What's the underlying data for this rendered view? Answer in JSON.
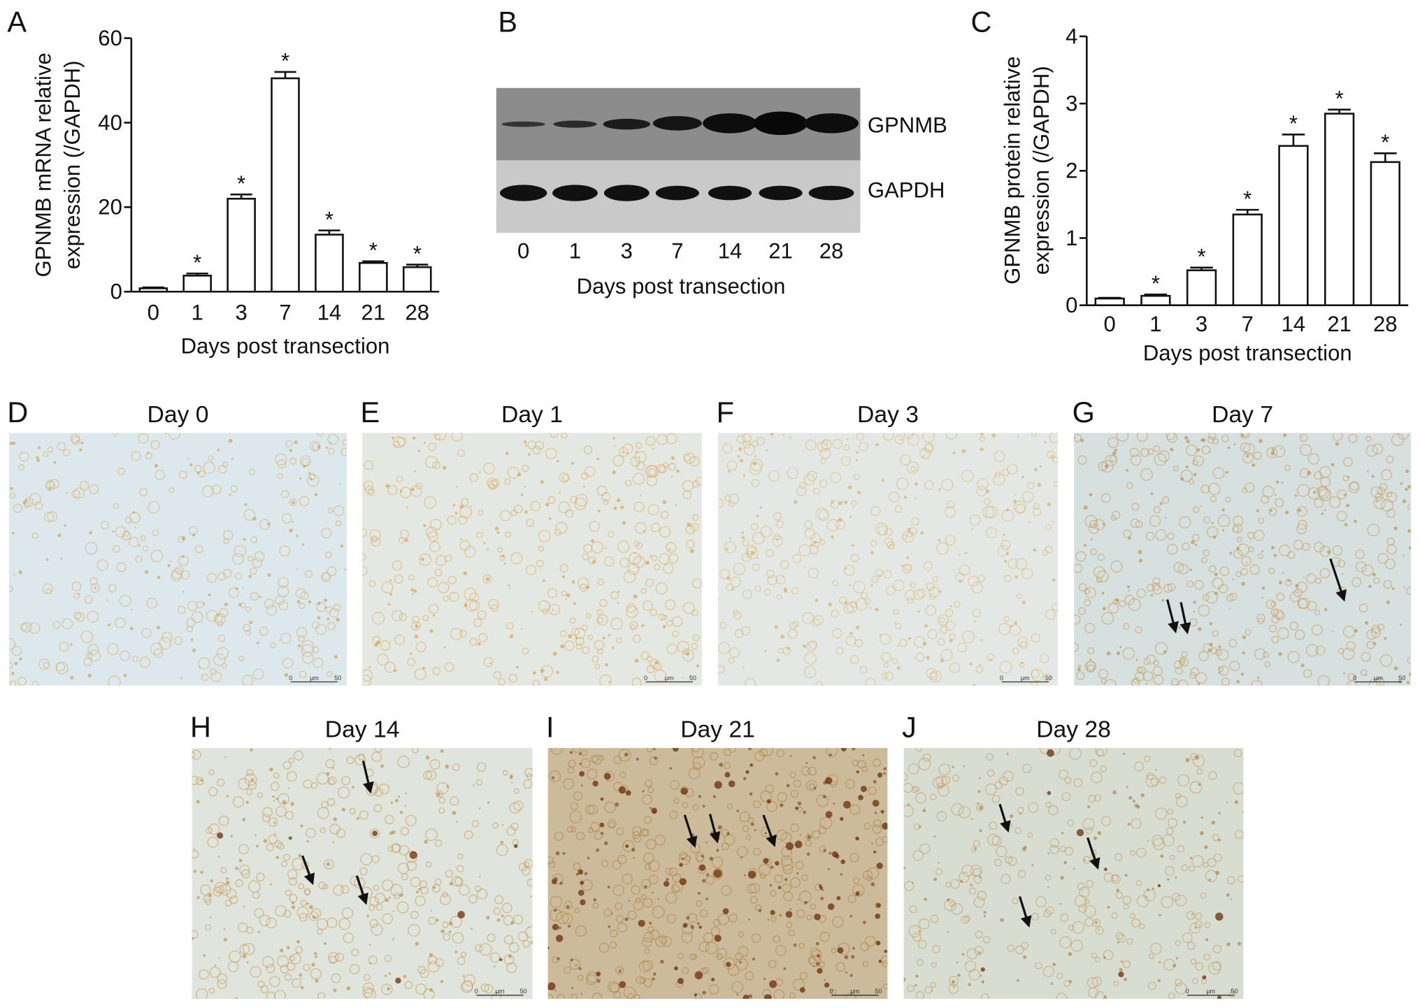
{
  "chart_data": [
    {
      "type": "bar",
      "panel": "A",
      "ylabel": [
        "GPNMB mRNA relative",
        "expression (/GAPDH)"
      ],
      "xlabel": "Days post transection",
      "categories": [
        "0",
        "1",
        "3",
        "7",
        "14",
        "21",
        "28"
      ],
      "values": [
        0.8,
        3.8,
        22,
        50.5,
        13.5,
        6.8,
        5.8
      ],
      "errors": [
        0.2,
        0.5,
        1,
        1.5,
        1,
        0.4,
        0.6
      ],
      "annotations": [
        null,
        "*",
        "*",
        "*",
        "*",
        "*",
        "*"
      ],
      "ylim": [
        0,
        60
      ],
      "yticks": [
        0,
        20,
        40,
        60
      ],
      "color": "#ffffff"
    },
    {
      "type": "bar",
      "panel": "C",
      "ylabel": [
        "GPNMB protein relative",
        "expression (/GAPDH)"
      ],
      "xlabel": "Days post transection",
      "categories": [
        "0",
        "1",
        "3",
        "7",
        "14",
        "21",
        "28"
      ],
      "values": [
        0.1,
        0.14,
        0.52,
        1.35,
        2.37,
        2.85,
        2.13
      ],
      "errors": [
        0.01,
        0.02,
        0.04,
        0.07,
        0.17,
        0.06,
        0.13
      ],
      "annotations": [
        null,
        "*",
        "*",
        "*",
        "*",
        "*",
        "*"
      ],
      "ylim": [
        0,
        4
      ],
      "yticks": [
        0,
        1,
        2,
        3,
        4
      ],
      "color": "#ffffff"
    }
  ],
  "blot": {
    "panel": "B",
    "bands": [
      "GPNMB",
      "GAPDH"
    ],
    "lanes": [
      "0",
      "1",
      "3",
      "7",
      "14",
      "21",
      "28"
    ],
    "xlabel": "Days post transection"
  },
  "micrographs": [
    {
      "label": "D",
      "title": "Day 0",
      "scale_bar": [
        "0",
        "μm",
        "50"
      ]
    },
    {
      "label": "E",
      "title": "Day 1",
      "scale_bar": [
        "0",
        "μm",
        "50"
      ]
    },
    {
      "label": "F",
      "title": "Day 3",
      "scale_bar": [
        "0",
        "μm",
        "50"
      ]
    },
    {
      "label": "G",
      "title": "Day 7",
      "scale_bar": [
        "0",
        "μm",
        "50"
      ]
    },
    {
      "label": "H",
      "title": "Day 14",
      "scale_bar": [
        "0",
        "μm",
        "50"
      ]
    },
    {
      "label": "I",
      "title": "Day 21",
      "scale_bar": [
        "0",
        "μm",
        "50"
      ]
    },
    {
      "label": "J",
      "title": "Day 28",
      "scale_bar": [
        "0",
        "μm",
        "50"
      ]
    }
  ]
}
